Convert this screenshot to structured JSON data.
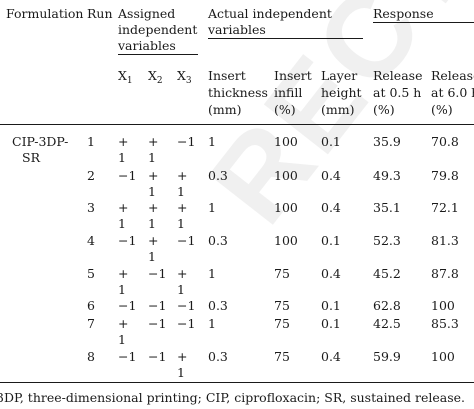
{
  "headers": {
    "formulation": "Formulation",
    "run": "Run",
    "assigned_line1": "Assigned",
    "assigned_line2": "independent",
    "assigned_line3": "variables",
    "actual_line1": "Actual independent",
    "actual_line2": "variables",
    "response": "Response",
    "x1": "X",
    "x1_sub": "1",
    "x2": "X",
    "x2_sub": "2",
    "x3": "X",
    "x3_sub": "3",
    "thickness_l1": "Insert",
    "thickness_l2": "thickness",
    "thickness_l3": "(mm)",
    "infill_l1": "Insert",
    "infill_l2": "infill",
    "infill_l3": "(%)",
    "layer_l1": "Layer",
    "layer_l2": "height",
    "layer_l3": "(mm)",
    "rel05_l1": "Release",
    "rel05_l2": "at 0.5 h",
    "rel05_l3": "(%)",
    "rel60_l1": "Release",
    "rel60_l2": "at 6.0 h",
    "rel60_l3": "(%)"
  },
  "formulation_l1": "CIP-3DP-",
  "formulation_l2": "SR",
  "rows": [
    {
      "run": "1",
      "x1": [
        "+",
        "1"
      ],
      "x2": [
        "+",
        "1"
      ],
      "x3": [
        "−1",
        ""
      ],
      "thickness": "1",
      "infill": "100",
      "layer": "0.1",
      "rel05": "35.9",
      "rel60": "70.8"
    },
    {
      "run": "2",
      "x1": [
        "−1",
        ""
      ],
      "x2": [
        "+",
        "1"
      ],
      "x3": [
        "+",
        "1"
      ],
      "thickness": "0.3",
      "infill": "100",
      "layer": "0.4",
      "rel05": "49.3",
      "rel60": "79.8"
    },
    {
      "run": "3",
      "x1": [
        "+",
        "1"
      ],
      "x2": [
        "+",
        "1"
      ],
      "x3": [
        "+",
        "1"
      ],
      "thickness": "1",
      "infill": "100",
      "layer": "0.4",
      "rel05": "35.1",
      "rel60": "72.1"
    },
    {
      "run": "4",
      "x1": [
        "−1",
        ""
      ],
      "x2": [
        "+",
        "1"
      ],
      "x3": [
        "−1",
        ""
      ],
      "thickness": "0.3",
      "infill": "100",
      "layer": "0.1",
      "rel05": "52.3",
      "rel60": "81.3"
    },
    {
      "run": "5",
      "x1": [
        "+",
        "1"
      ],
      "x2": [
        "−1",
        ""
      ],
      "x3": [
        "+",
        "1"
      ],
      "thickness": "1",
      "infill": "75",
      "layer": "0.4",
      "rel05": "45.2",
      "rel60": "87.8"
    },
    {
      "run": "6",
      "x1": [
        "−1",
        ""
      ],
      "x2": [
        "−1",
        ""
      ],
      "x3": [
        "−1",
        ""
      ],
      "thickness": "0.3",
      "infill": "75",
      "layer": "0.1",
      "rel05": "62.8",
      "rel60": "100"
    },
    {
      "run": "7",
      "x1": [
        "+",
        "1"
      ],
      "x2": [
        "−1",
        ""
      ],
      "x3": [
        "−1",
        ""
      ],
      "thickness": "1",
      "infill": "75",
      "layer": "0.1",
      "rel05": "42.5",
      "rel60": "85.3"
    },
    {
      "run": "8",
      "x1": [
        "−1",
        ""
      ],
      "x2": [
        "−1",
        ""
      ],
      "x3": [
        "+",
        "1"
      ],
      "thickness": "0.3",
      "infill": "75",
      "layer": "0.4",
      "rel05": "59.9",
      "rel60": "100"
    }
  ],
  "footnote": "3DP, three-dimensional printing; CIP, ciprofloxacin; SR, sustained release.",
  "watermark": "RECTED"
}
